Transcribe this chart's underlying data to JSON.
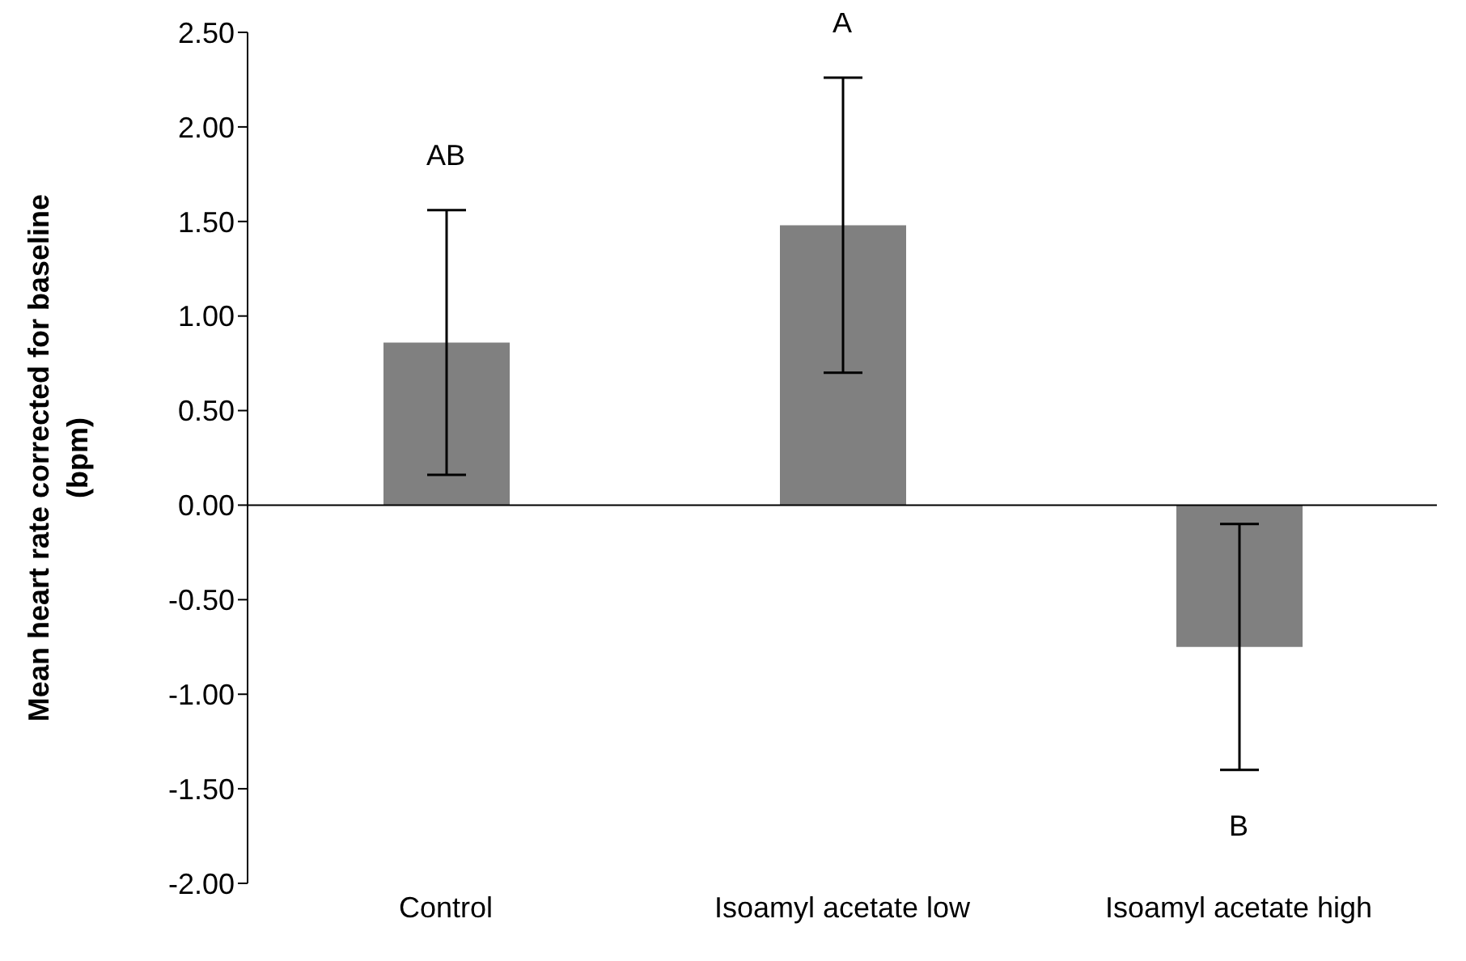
{
  "chart_data": {
    "type": "bar",
    "ylabel": "Mean heart rate corrected for baseline (bpm)",
    "categories": [
      "Control",
      "Isoamyl acetate low",
      "Isoamyl acetate high"
    ],
    "values": [
      0.86,
      1.48,
      -0.75
    ],
    "errors": [
      0.7,
      0.78,
      0.65
    ],
    "color": "#808080",
    "ylim": [
      -2,
      2.5
    ],
    "yticks": [
      {
        "value": -2,
        "label": "-2.00"
      },
      {
        "value": -1.5,
        "label": "-1.50"
      },
      {
        "value": -1,
        "label": "-1.00"
      },
      {
        "value": -0.5,
        "label": "-0.50"
      },
      {
        "value": 0,
        "label": "0.00"
      },
      {
        "value": 0.5,
        "label": "0.50"
      },
      {
        "value": 1,
        "label": "1.00"
      },
      {
        "value": 1.5,
        "label": "1.50"
      },
      {
        "value": 2,
        "label": "2.00"
      },
      {
        "value": 2.5,
        "label": "2.50"
      }
    ],
    "annotations": [
      "AB",
      "A",
      "B"
    ],
    "legend": false
  }
}
